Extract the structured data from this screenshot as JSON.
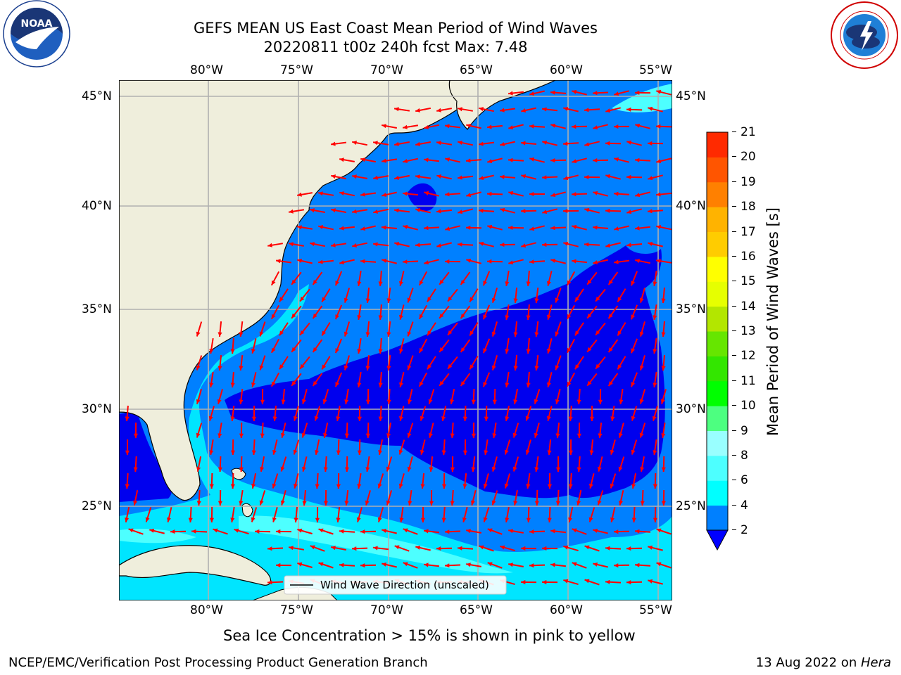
{
  "header": {
    "title_line1": "GEFS MEAN US East Coast Mean Period of Wind Waves",
    "title_line2": "20220811 t00z 240h fcst   Max: 7.48"
  },
  "logos": {
    "noara_text": "NOAA",
    "noaa_ring_text": "NATIONAL OCEANIC AND ATMOSPHERIC ADMINISTRATION · U.S. DEPARTMENT OF COMMERCE",
    "nws_ring_text": "NATIONAL WEATHER SERVICE"
  },
  "map": {
    "lon_labels": [
      "80°W",
      "75°W",
      "70°W",
      "65°W",
      "60°W",
      "55°W"
    ],
    "lat_labels": [
      "45°N",
      "40°N",
      "35°N",
      "30°N",
      "25°N"
    ],
    "legend_label": "Wind Wave Direction (unscaled)",
    "colors": {
      "land": "#efeedc",
      "coast": "#000000",
      "grid": "#b0b0b0",
      "arrow": "#ff0000",
      "lvl_2_4": "#0080ff",
      "lvl_below_2": "#0000ee",
      "lvl_4_6": "#00e5ff",
      "lvl_6_8": "#4dffff"
    }
  },
  "colorbar": {
    "label": "Mean Period of Wind Waves [s]",
    "ticks": [
      "2",
      "4",
      "6",
      "8",
      "9",
      "10",
      "11",
      "12",
      "13",
      "14",
      "15",
      "16",
      "17",
      "18",
      "19",
      "20",
      "21"
    ],
    "colors": [
      "#0080ff",
      "#00ffff",
      "#4dffff",
      "#99ffff",
      "#4dff80",
      "#00ff00",
      "#33e600",
      "#66e600",
      "#b3e600",
      "#e6ff00",
      "#ffff00",
      "#ffcc00",
      "#ffb300",
      "#ff8000",
      "#ff5500",
      "#ff2a00",
      "#ff0000"
    ],
    "under_color": "#0000ff"
  },
  "note": "Sea Ice Concentration > 15% is shown in pink to yellow",
  "footer": {
    "left": "NCEP/EMC/Verification Post Processing Product Generation Branch",
    "right_prefix": "13 Aug 2022 on ",
    "right_host": "Hera"
  }
}
